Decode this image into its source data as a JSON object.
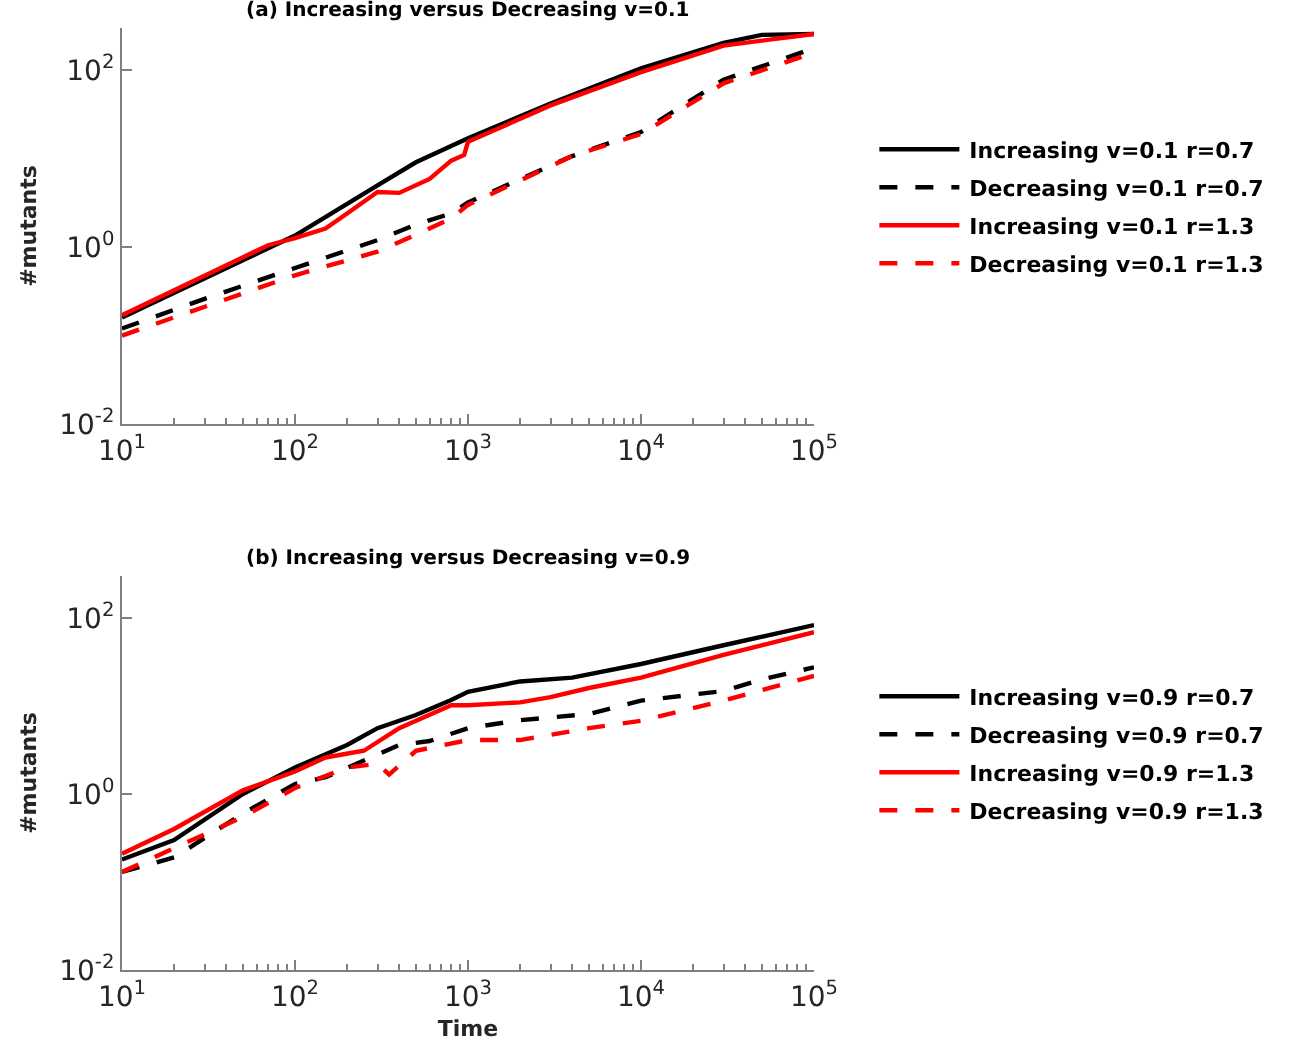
{
  "chart_data": [
    {
      "type": "line",
      "title": "(a) Increasing versus Decreasing v=0.1",
      "ylabel": "#mutants",
      "log": "xy",
      "legend": "right",
      "xlim": [
        10,
        100000
      ],
      "ylim": [
        0.01,
        300
      ],
      "xticks": [
        {
          "value": 10,
          "label": "10$^{1}$"
        },
        {
          "value": 100,
          "label": "10$^{2}$"
        },
        {
          "value": 1000,
          "label": "10$^{3}$"
        },
        {
          "value": 10000,
          "label": "10$^{4}$"
        },
        {
          "value": 100000,
          "label": "10$^{5}$"
        }
      ],
      "yticks": [
        {
          "value": 0.01,
          "label": "10$^{-2}$"
        },
        {
          "value": 1,
          "label": "10$^{0}$"
        },
        {
          "value": 100,
          "label": "10$^{2}$"
        }
      ],
      "series": [
        {
          "name": "Increasing v=0.1 r=0.7",
          "color": "#000000",
          "line_style": "solid",
          "x": [
            10,
            100,
            300,
            500,
            1000,
            3000,
            10000,
            30000,
            50000,
            100000
          ],
          "values": [
            0.16,
            1.35,
            5.0,
            9.1,
            17,
            42,
            105,
            204,
            251,
            257
          ]
        },
        {
          "name": "Decreasing v=0.1 r=0.7",
          "color": "#000000",
          "line_style": "dashed",
          "x": [
            10,
            30,
            100,
            300,
            500,
            800,
            1000,
            4000,
            10000,
            30000,
            100000
          ],
          "values": [
            0.12,
            0.26,
            0.58,
            1.2,
            1.8,
            2.4,
            3.2,
            10.7,
            20,
            78,
            178
          ]
        },
        {
          "name": "Increasing v=0.1 r=1.3",
          "color": "#ff0000",
          "line_style": "solid",
          "x": [
            10,
            70,
            100,
            150,
            200,
            300,
            400,
            600,
            800,
            950,
            1000,
            3000,
            10000,
            30000,
            100000
          ],
          "values": [
            0.17,
            1.05,
            1.26,
            1.62,
            2.4,
            4.2,
            4.1,
            5.9,
            9.5,
            11,
            15.5,
            40,
            95,
            190,
            257
          ]
        },
        {
          "name": "Decreasing v=0.1 r=1.3",
          "color": "#ff0000",
          "line_style": "dashed",
          "x": [
            10,
            100,
            300,
            500,
            800,
            1000,
            4000,
            10000,
            30000,
            100000
          ],
          "values": [
            0.1,
            0.48,
            0.89,
            1.38,
            2.1,
            3.0,
            10.7,
            19,
            71,
            158
          ]
        }
      ]
    },
    {
      "type": "line",
      "title": "(b) Increasing versus Decreasing v=0.9",
      "xlabel": "Time",
      "ylabel": "#mutants",
      "log": "xy",
      "legend": "right",
      "xlim": [
        10,
        100000
      ],
      "ylim": [
        0.01,
        300
      ],
      "xticks": [
        {
          "value": 10,
          "label": "10$^{1}$"
        },
        {
          "value": 100,
          "label": "10$^{2}$"
        },
        {
          "value": 1000,
          "label": "10$^{3}$"
        },
        {
          "value": 10000,
          "label": "10$^{4}$"
        },
        {
          "value": 100000,
          "label": "10$^{5}$"
        }
      ],
      "yticks": [
        {
          "value": 0.01,
          "label": "10$^{-2}$"
        },
        {
          "value": 1,
          "label": "10$^{0}$"
        },
        {
          "value": 100,
          "label": "10$^{2}$"
        }
      ],
      "series": [
        {
          "name": "Increasing v=0.9 r=0.7",
          "color": "#000000",
          "line_style": "solid",
          "x": [
            10,
            20,
            50,
            100,
            200,
            300,
            500,
            800,
            1000,
            2000,
            4000,
            10000,
            30000,
            100000
          ],
          "values": [
            0.18,
            0.3,
            1.0,
            2.0,
            3.6,
            5.6,
            7.9,
            11.7,
            14.5,
            19,
            21,
            30,
            49,
            83
          ]
        },
        {
          "name": "Decreasing v=0.9 r=0.7",
          "color": "#000000",
          "line_style": "dashed",
          "x": [
            10,
            20,
            50,
            100,
            150,
            300,
            400,
            600,
            1000,
            2000,
            5000,
            10000,
            30000,
            50000,
            100000
          ],
          "values": [
            0.13,
            0.19,
            0.6,
            1.3,
            1.55,
            2.8,
            3.6,
            4.0,
            5.6,
            6.9,
            8.1,
            11.5,
            14.8,
            20,
            27.5
          ]
        },
        {
          "name": "Increasing v=0.9 r=1.3",
          "color": "#ff0000",
          "line_style": "solid",
          "x": [
            10,
            20,
            50,
            100,
            150,
            250,
            400,
            800,
            1000,
            2000,
            3000,
            5000,
            10000,
            30000,
            100000
          ],
          "values": [
            0.21,
            0.4,
            1.1,
            1.8,
            2.6,
            3.1,
            5.6,
            10.2,
            10.2,
            11,
            12.6,
            16,
            21,
            38,
            69
          ]
        },
        {
          "name": "Decreasing v=0.9 r=1.3",
          "color": "#ff0000",
          "line_style": "dashed",
          "x": [
            10,
            50,
            100,
            200,
            300,
            350,
            500,
            1000,
            2000,
            5000,
            10000,
            30000,
            100000
          ],
          "values": [
            0.13,
            0.55,
            1.17,
            2.0,
            2.2,
            1.66,
            3.1,
            4.1,
            4.1,
            5.6,
            6.8,
            11.5,
            22
          ]
        }
      ]
    }
  ]
}
